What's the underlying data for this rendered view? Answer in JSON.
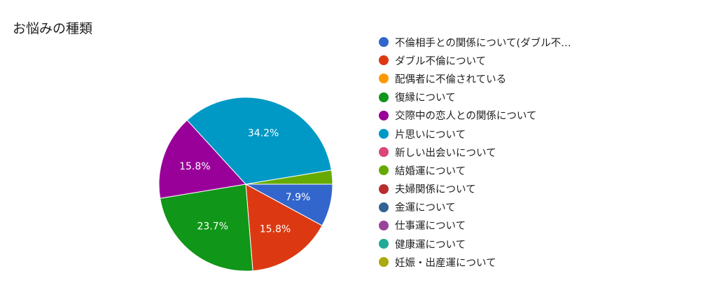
{
  "chart_data": {
    "type": "pie",
    "title": "お悩みの種類",
    "legend_position": "right",
    "start_angle_deg": 90,
    "direction": "clockwise",
    "slices": [
      {
        "label": "不倫相手との関係について(ダブル不…",
        "value": 7.9,
        "display": "7.9%",
        "color": "#3366cc"
      },
      {
        "label": "ダブル不倫について",
        "value": 15.8,
        "display": "15.8%",
        "color": "#dc3912"
      },
      {
        "label": "配偶者に不倫されている",
        "value": 0,
        "display": "",
        "color": "#ff9900"
      },
      {
        "label": "復縁について",
        "value": 23.7,
        "display": "23.7%",
        "color": "#109618"
      },
      {
        "label": "交際中の恋人との関係について",
        "value": 15.8,
        "display": "15.8%",
        "color": "#990099"
      },
      {
        "label": "片思いについて",
        "value": 34.2,
        "display": "34.2%",
        "color": "#0099c6"
      },
      {
        "label": "新しい出会いについて",
        "value": 0,
        "display": "",
        "color": "#dd4477"
      },
      {
        "label": "結婚運について",
        "value": 2.6,
        "display": "",
        "color": "#66aa00"
      },
      {
        "label": "夫婦関係について",
        "value": 0,
        "display": "",
        "color": "#b82e2e"
      },
      {
        "label": "金運について",
        "value": 0,
        "display": "",
        "color": "#316395"
      },
      {
        "label": "仕事運について",
        "value": 0,
        "display": "",
        "color": "#994499"
      },
      {
        "label": "健康運について",
        "value": 0,
        "display": "",
        "color": "#22aa99"
      },
      {
        "label": "妊娠・出産運について",
        "value": 0,
        "display": "",
        "color": "#aaaa11"
      }
    ]
  }
}
